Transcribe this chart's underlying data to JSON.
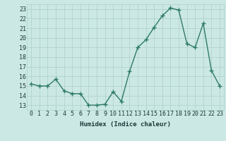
{
  "x": [
    0,
    1,
    2,
    3,
    4,
    5,
    6,
    7,
    8,
    9,
    10,
    11,
    12,
    13,
    14,
    15,
    16,
    17,
    18,
    19,
    20,
    21,
    22,
    23
  ],
  "y": [
    15.2,
    15.0,
    15.0,
    15.7,
    14.5,
    14.2,
    14.2,
    13.0,
    13.0,
    13.1,
    14.4,
    13.4,
    16.5,
    19.0,
    19.8,
    21.1,
    22.3,
    23.1,
    22.9,
    19.4,
    19.0,
    21.5,
    16.6,
    15.0
  ],
  "line_color": "#2d7a6a",
  "marker": "+",
  "marker_size": 4,
  "marker_lw": 1.0,
  "bg_color": "#cce8e4",
  "grid_color": "#aacfc9",
  "xlabel": "Humidex (Indice chaleur)",
  "xlim": [
    -0.5,
    23.5
  ],
  "ylim": [
    12.5,
    23.5
  ],
  "yticks": [
    13,
    14,
    15,
    16,
    17,
    18,
    19,
    20,
    21,
    22,
    23
  ],
  "xticks": [
    0,
    1,
    2,
    3,
    4,
    5,
    6,
    7,
    8,
    9,
    10,
    11,
    12,
    13,
    14,
    15,
    16,
    17,
    18,
    19,
    20,
    21,
    22,
    23
  ],
  "font_color": "#1a3a3a",
  "label_fontsize": 6.5,
  "tick_fontsize": 6.0,
  "linewidth": 1.0
}
